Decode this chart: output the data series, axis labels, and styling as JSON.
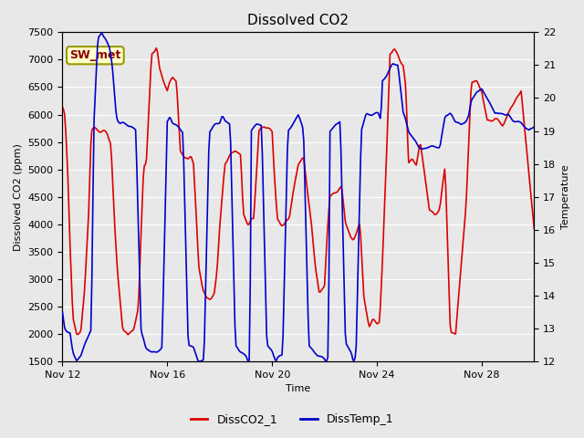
{
  "title": "Dissolved CO2",
  "xlabel": "Time",
  "ylabel_left": "Dissolved CO2 (ppm)",
  "ylabel_right": "Temperature",
  "ylim_left": [
    1500,
    7500
  ],
  "ylim_right": [
    12.0,
    22.0
  ],
  "yticks_left": [
    1500,
    2000,
    2500,
    3000,
    3500,
    4000,
    4500,
    5000,
    5500,
    6000,
    6500,
    7000,
    7500
  ],
  "yticks_right": [
    12.0,
    13.0,
    14.0,
    15.0,
    16.0,
    17.0,
    18.0,
    19.0,
    20.0,
    21.0,
    22.0
  ],
  "xticklabels": [
    "Nov 12",
    "Nov 16",
    "Nov 20",
    "Nov 24",
    "Nov 28"
  ],
  "xtick_days": [
    12,
    16,
    20,
    24,
    28
  ],
  "color_co2": "#dd0000",
  "color_temp": "#0000cc",
  "legend_co2": "DissCO2_1",
  "legend_temp": "DissTemp_1",
  "annotation_label": "SW_met",
  "annotation_bg": "#ffffcc",
  "annotation_border": "#999900",
  "bg_color": "#e8e8e8",
  "linewidth": 1.2,
  "title_fontsize": 11,
  "axis_fontsize": 8,
  "legend_fontsize": 9
}
